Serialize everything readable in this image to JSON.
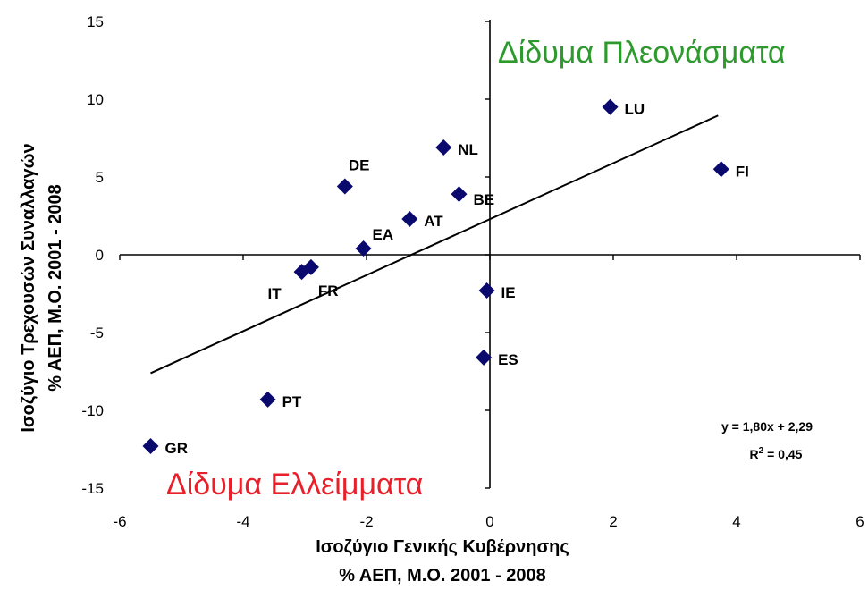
{
  "chart_data": {
    "type": "scatter",
    "xlabel_line1": "Ισοζύγιο Γενικής Κυβέρνησης",
    "xlabel_line2": "% ΑΕΠ, Μ.Ο. 2001 - 2008",
    "ylabel_line1": "Ισοζύγιο Τρεχουσών Συναλλαγών",
    "ylabel_line2": "% ΑΕΠ, Μ.Ο. 2001 - 2008",
    "xlim": [
      -6,
      6
    ],
    "ylim": [
      -15,
      15
    ],
    "xticks": [
      "-6",
      "-4",
      "-2",
      "0",
      "2",
      "4",
      "6"
    ],
    "yticks": [
      "15",
      "10",
      "5",
      "0",
      "-5",
      "-10",
      "-15"
    ],
    "marker_color": "#0a0a6e",
    "points": [
      {
        "label": "LU",
        "x": 1.95,
        "y": 9.5
      },
      {
        "label": "FI",
        "x": 3.75,
        "y": 5.5
      },
      {
        "label": "NL",
        "x": -0.75,
        "y": 6.9
      },
      {
        "label": "BE",
        "x": -0.5,
        "y": 3.9
      },
      {
        "label": "DE",
        "x": -2.35,
        "y": 4.4
      },
      {
        "label": "AT",
        "x": -1.3,
        "y": 2.3
      },
      {
        "label": "EA",
        "x": -2.05,
        "y": 0.4
      },
      {
        "label": "IT",
        "x": -3.05,
        "y": -1.1
      },
      {
        "label": "FR",
        "x": -2.9,
        "y": -0.8
      },
      {
        "label": "IE",
        "x": -0.05,
        "y": -2.3
      },
      {
        "label": "ES",
        "x": -0.1,
        "y": -6.6
      },
      {
        "label": "PT",
        "x": -3.6,
        "y": -9.3
      },
      {
        "label": "GR",
        "x": -5.5,
        "y": -12.3
      }
    ],
    "trendline": {
      "slope": 1.8,
      "intercept": 2.29,
      "x_range": [
        -5.5,
        3.7
      ]
    },
    "equation": "y = 1,80x + 2,29",
    "r2_prefix": "R",
    "r2_sup": "2",
    "r2_suffix": " = 0,45",
    "annotations": {
      "top_right": "Δίδυμα Πλεονάσματα",
      "bottom_left": "Δίδυμα Ελλείμματα"
    },
    "grid": false
  }
}
